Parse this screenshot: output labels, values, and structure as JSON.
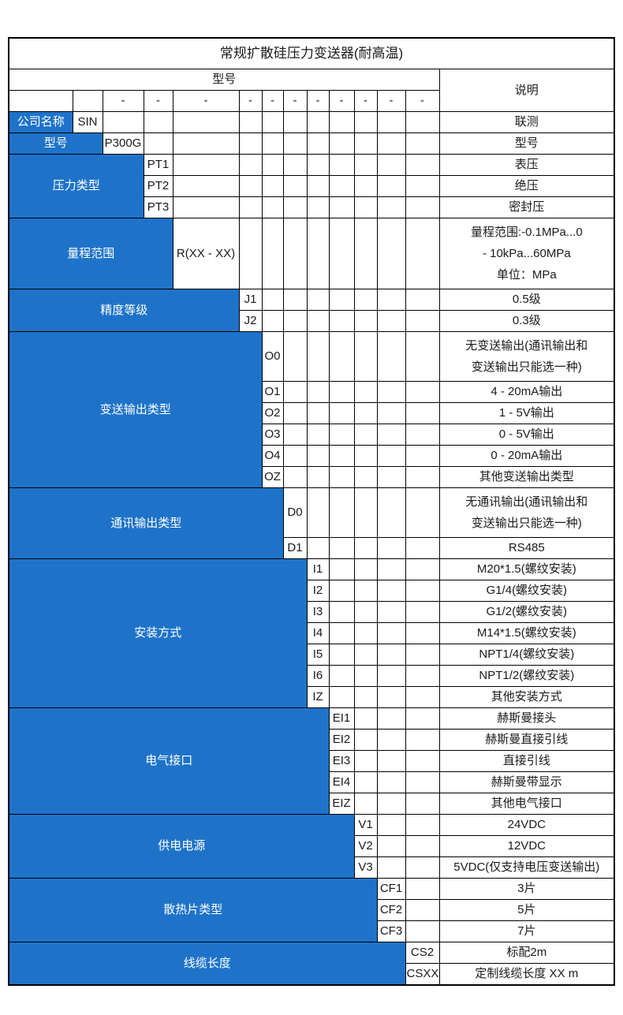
{
  "title": "常规扩散硅压力变送器(耐高温)",
  "header": {
    "model_label": "型号",
    "desc_label": "说明",
    "dash": "-"
  },
  "company_row": {
    "label": "公司名称",
    "code": "SIN",
    "desc": "联测"
  },
  "model_row": {
    "label": "型号",
    "code": "P300G",
    "desc": "型号"
  },
  "sections": [
    {
      "label": "压力类型",
      "options": [
        {
          "code": "PT1",
          "desc": "表压"
        },
        {
          "code": "PT2",
          "desc": "绝压"
        },
        {
          "code": "PT3",
          "desc": "密封压"
        }
      ]
    },
    {
      "label": "量程范围",
      "options": [
        {
          "code": "R(XX - XX)",
          "desc": [
            "量程范围:-0.1MPa...0",
            "- 10kPa...60MPa",
            "单位：MPa"
          ]
        }
      ]
    },
    {
      "label": "精度等级",
      "options": [
        {
          "code": "J1",
          "desc": "0.5级"
        },
        {
          "code": "J2",
          "desc": "0.3级"
        }
      ]
    },
    {
      "label": "变送输出类型",
      "options": [
        {
          "code": "O0",
          "desc": [
            "无变送输出(通讯输出和",
            "变送输出只能选一种)"
          ]
        },
        {
          "code": "O1",
          "desc": "4 - 20mA输出"
        },
        {
          "code": "O2",
          "desc": "1 - 5V输出"
        },
        {
          "code": "O3",
          "desc": "0 - 5V输出"
        },
        {
          "code": "O4",
          "desc": "0 - 20mA输出"
        },
        {
          "code": "OZ",
          "desc": "其他变送输出类型"
        }
      ]
    },
    {
      "label": "通讯输出类型",
      "options": [
        {
          "code": "D0",
          "desc": [
            "无通讯输出(通讯输出和",
            "变送输出只能选一种)"
          ]
        },
        {
          "code": "D1",
          "desc": "RS485"
        }
      ]
    },
    {
      "label": "安装方式",
      "options": [
        {
          "code": "I1",
          "desc": "M20*1.5(螺纹安装)"
        },
        {
          "code": "I2",
          "desc": "G1/4(螺纹安装)"
        },
        {
          "code": "I3",
          "desc": "G1/2(螺纹安装)"
        },
        {
          "code": "I4",
          "desc": "M14*1.5(螺纹安装)"
        },
        {
          "code": "I5",
          "desc": "NPT1/4(螺纹安装)"
        },
        {
          "code": "I6",
          "desc": "NPT1/2(螺纹安装)"
        },
        {
          "code": "IZ",
          "desc": "其他安装方式"
        }
      ]
    },
    {
      "label": "电气接口",
      "options": [
        {
          "code": "EI1",
          "desc": "赫斯曼接头"
        },
        {
          "code": "EI2",
          "desc": "赫斯曼直接引线"
        },
        {
          "code": "EI3",
          "desc": "直接引线"
        },
        {
          "code": "EI4",
          "desc": "赫斯曼带显示"
        },
        {
          "code": "EIZ",
          "desc": "其他电气接口"
        }
      ]
    },
    {
      "label": "供电电源",
      "options": [
        {
          "code": "V1",
          "desc": "24VDC"
        },
        {
          "code": "V2",
          "desc": "12VDC"
        },
        {
          "code": "V3",
          "desc": "5VDC(仅支持电压变送输出)"
        }
      ]
    },
    {
      "label": "散热片类型",
      "options": [
        {
          "code": "CF1",
          "desc": "3片"
        },
        {
          "code": "CF2",
          "desc": "5片"
        },
        {
          "code": "CF3",
          "desc": "7片"
        }
      ]
    },
    {
      "label": "线缆长度",
      "options": [
        {
          "code": "CS2",
          "desc": "标配2m"
        },
        {
          "code": "CSXX",
          "desc": "定制线缆长度 XX m"
        }
      ]
    }
  ],
  "colors": {
    "accent_blue": "#1E73C9",
    "border": "#000000",
    "text_on_blue": "#FFFFFF",
    "text": "#1A1A1A"
  }
}
